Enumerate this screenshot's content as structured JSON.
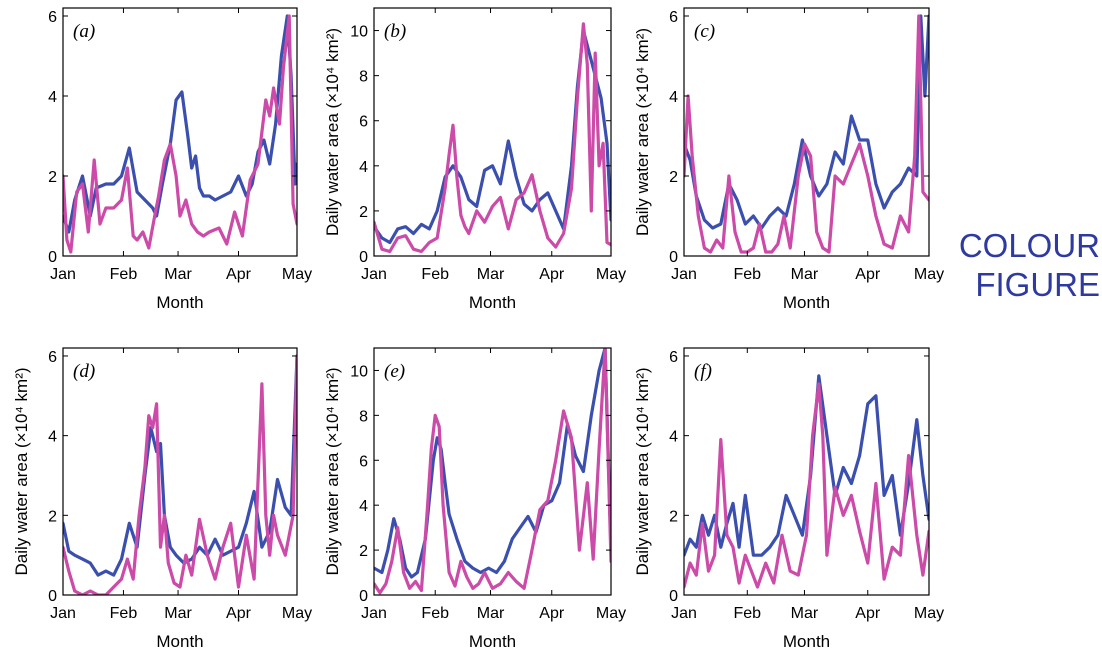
{
  "stamp": {
    "line1": "COLOUR",
    "line2": "FIGURE"
  },
  "colors": {
    "blue": "#3a4fae",
    "magenta": "#cc4aa8"
  },
  "chart_data": [
    {
      "type": "line",
      "panel_label": "(a)",
      "xlabel": "Month",
      "ylabel": "Daily water area (×10⁴ km²)",
      "ylim": [
        0,
        6.2
      ],
      "yticks": [
        0,
        2,
        4,
        6
      ],
      "xlim": [
        0,
        120
      ],
      "xticks": [
        0,
        31,
        59,
        90,
        120
      ],
      "xtick_labels": [
        "Jan",
        "Feb",
        "Mar",
        "Apr",
        "May"
      ],
      "series": [
        {
          "color": "#3a4fae",
          "x": [
            0,
            3,
            6,
            10,
            14,
            17,
            22,
            26,
            30,
            34,
            38,
            42,
            46,
            48,
            51,
            55,
            58,
            61,
            64,
            66,
            68,
            70,
            72,
            75,
            78,
            82,
            86,
            90,
            94,
            97,
            100,
            103,
            106,
            109,
            112,
            115,
            117,
            119,
            120
          ],
          "y": [
            1.0,
            0.6,
            1.4,
            2.0,
            1.0,
            1.7,
            1.8,
            1.8,
            2.0,
            2.7,
            1.6,
            1.4,
            1.2,
            1.0,
            1.8,
            2.8,
            3.9,
            4.1,
            3.0,
            2.2,
            2.5,
            1.7,
            1.5,
            1.5,
            1.4,
            1.5,
            1.6,
            2.0,
            1.5,
            1.8,
            2.6,
            2.9,
            2.3,
            3.3,
            5.0,
            6.0,
            4.5,
            1.8,
            2.3
          ]
        },
        {
          "color": "#cc4aa8",
          "x": [
            0,
            2,
            4,
            7,
            10,
            13,
            16,
            19,
            22,
            26,
            30,
            33,
            36,
            38,
            41,
            44,
            47,
            49,
            52,
            55,
            58,
            60,
            63,
            66,
            69,
            72,
            75,
            80,
            84,
            88,
            92,
            96,
            100,
            104,
            106,
            108,
            111,
            113,
            116,
            118,
            120
          ],
          "y": [
            2.0,
            0.4,
            0.1,
            1.6,
            1.8,
            0.6,
            2.4,
            0.8,
            1.2,
            1.2,
            1.4,
            2.2,
            0.5,
            0.4,
            0.6,
            0.2,
            1.0,
            1.5,
            2.4,
            2.8,
            2.0,
            1.0,
            1.4,
            0.8,
            0.6,
            0.5,
            0.6,
            0.7,
            0.3,
            1.1,
            0.5,
            1.9,
            2.3,
            3.9,
            3.5,
            4.2,
            3.3,
            4.7,
            6.0,
            1.3,
            0.8
          ]
        }
      ]
    },
    {
      "type": "line",
      "panel_label": "(b)",
      "xlabel": "Month",
      "ylabel": "Daily water area (×10⁴ km²)",
      "ylim": [
        0,
        11
      ],
      "yticks": [
        0,
        2,
        4,
        6,
        8,
        10
      ],
      "xlim": [
        0,
        120
      ],
      "xticks": [
        0,
        31,
        59,
        90,
        120
      ],
      "xtick_labels": [
        "Jan",
        "Feb",
        "Mar",
        "Apr",
        "May"
      ],
      "series": [
        {
          "color": "#3a4fae",
          "x": [
            0,
            4,
            8,
            12,
            16,
            20,
            24,
            28,
            32,
            36,
            40,
            44,
            48,
            52,
            56,
            60,
            64,
            68,
            72,
            76,
            80,
            84,
            88,
            92,
            96,
            100,
            103,
            106,
            109,
            112,
            115,
            118,
            120
          ],
          "y": [
            1.3,
            0.8,
            0.6,
            1.2,
            1.3,
            1.0,
            1.4,
            1.2,
            2.0,
            3.5,
            4.0,
            3.5,
            2.5,
            2.2,
            3.8,
            4.0,
            3.2,
            5.1,
            3.5,
            2.3,
            2.0,
            2.5,
            2.8,
            2.0,
            1.2,
            4.0,
            7.5,
            10.0,
            9.0,
            8.0,
            7.0,
            5.0,
            1.6
          ]
        },
        {
          "color": "#cc4aa8",
          "x": [
            0,
            4,
            8,
            12,
            16,
            20,
            24,
            28,
            32,
            36,
            38,
            40,
            42,
            44,
            46,
            48,
            52,
            56,
            60,
            64,
            68,
            72,
            76,
            80,
            84,
            88,
            92,
            96,
            100,
            103,
            106,
            108,
            110,
            112,
            114,
            116,
            118,
            120
          ],
          "y": [
            1.5,
            0.3,
            0.2,
            0.8,
            0.9,
            0.3,
            0.2,
            0.6,
            0.8,
            3.0,
            4.5,
            5.8,
            3.5,
            1.8,
            1.3,
            1.0,
            2.0,
            1.5,
            2.2,
            2.6,
            1.2,
            2.5,
            2.8,
            3.6,
            2.0,
            0.8,
            0.4,
            1.0,
            3.0,
            7.0,
            10.3,
            8.5,
            2.0,
            9.0,
            4.0,
            5.0,
            0.6,
            0.5
          ]
        }
      ]
    },
    {
      "type": "line",
      "panel_label": "(c)",
      "xlabel": "Month",
      "ylabel": "Daily water area (×10⁴ km²)",
      "ylim": [
        0,
        6.2
      ],
      "yticks": [
        0,
        2,
        4,
        6
      ],
      "xlim": [
        0,
        120
      ],
      "xticks": [
        0,
        31,
        59,
        90,
        120
      ],
      "xtick_labels": [
        "Jan",
        "Feb",
        "Mar",
        "Apr",
        "May"
      ],
      "series": [
        {
          "color": "#3a4fae",
          "x": [
            0,
            3,
            6,
            10,
            14,
            18,
            22,
            26,
            30,
            34,
            38,
            42,
            46,
            50,
            54,
            58,
            62,
            66,
            70,
            74,
            78,
            82,
            86,
            90,
            94,
            98,
            102,
            106,
            110,
            114,
            116,
            118,
            120
          ],
          "y": [
            2.8,
            2.4,
            1.5,
            0.9,
            0.7,
            0.8,
            1.8,
            1.4,
            0.8,
            1.0,
            0.7,
            1.0,
            1.2,
            1.0,
            1.8,
            2.9,
            2.0,
            1.5,
            1.8,
            2.6,
            2.3,
            3.5,
            2.9,
            2.9,
            1.8,
            1.2,
            1.6,
            1.8,
            2.2,
            2.0,
            6.0,
            4.0,
            6.0
          ]
        },
        {
          "color": "#cc4aa8",
          "x": [
            0,
            2,
            4,
            7,
            10,
            13,
            16,
            19,
            22,
            25,
            28,
            31,
            34,
            37,
            40,
            43,
            46,
            49,
            52,
            56,
            59,
            62,
            65,
            68,
            71,
            74,
            78,
            82,
            86,
            90,
            94,
            98,
            102,
            106,
            110,
            113,
            115,
            117,
            120
          ],
          "y": [
            2.0,
            4.0,
            2.5,
            1.0,
            0.2,
            0.1,
            0.4,
            0.2,
            2.0,
            0.6,
            0.1,
            0.1,
            0.2,
            0.8,
            0.1,
            0.1,
            0.3,
            1.0,
            0.2,
            2.0,
            2.8,
            2.5,
            0.6,
            0.2,
            0.1,
            2.0,
            1.8,
            2.3,
            2.8,
            2.0,
            1.0,
            0.3,
            0.2,
            1.0,
            0.6,
            2.5,
            6.0,
            1.6,
            1.4
          ]
        }
      ]
    },
    {
      "type": "line",
      "panel_label": "(d)",
      "xlabel": "Month",
      "ylabel": "Daily water area (×10⁴ km²)",
      "ylim": [
        0,
        6.2
      ],
      "yticks": [
        0,
        2,
        4,
        6
      ],
      "xlim": [
        0,
        120
      ],
      "xticks": [
        0,
        31,
        59,
        90,
        120
      ],
      "xtick_labels": [
        "Jan",
        "Feb",
        "Mar",
        "Apr",
        "May"
      ],
      "series": [
        {
          "color": "#3a4fae",
          "x": [
            0,
            3,
            6,
            10,
            14,
            18,
            22,
            26,
            30,
            34,
            38,
            42,
            45,
            48,
            50,
            52,
            55,
            58,
            62,
            66,
            70,
            74,
            78,
            82,
            86,
            90,
            94,
            98,
            102,
            106,
            110,
            114,
            117,
            120
          ],
          "y": [
            1.8,
            1.1,
            1.0,
            0.9,
            0.8,
            0.5,
            0.6,
            0.5,
            0.9,
            1.8,
            1.2,
            3.0,
            4.2,
            3.6,
            3.8,
            2.0,
            1.2,
            1.0,
            0.8,
            0.9,
            1.2,
            1.0,
            1.4,
            1.0,
            1.1,
            1.2,
            1.8,
            2.6,
            1.2,
            1.6,
            2.9,
            2.2,
            2.0,
            6.0
          ]
        },
        {
          "color": "#cc4aa8",
          "x": [
            0,
            3,
            6,
            10,
            14,
            18,
            22,
            26,
            30,
            33,
            36,
            39,
            42,
            44,
            46,
            48,
            50,
            52,
            54,
            57,
            60,
            63,
            66,
            70,
            74,
            78,
            82,
            86,
            90,
            94,
            98,
            102,
            104,
            106,
            108,
            110,
            114,
            118,
            120
          ],
          "y": [
            1.2,
            0.6,
            0.1,
            0.0,
            0.1,
            0.0,
            0.0,
            0.2,
            0.4,
            0.9,
            0.4,
            2.0,
            3.2,
            4.5,
            4.2,
            4.8,
            1.2,
            2.0,
            0.8,
            0.3,
            0.2,
            1.0,
            0.5,
            1.9,
            1.0,
            0.4,
            1.2,
            1.8,
            0.2,
            1.5,
            0.4,
            5.3,
            2.0,
            1.0,
            2.0,
            1.5,
            1.0,
            2.0,
            6.0
          ]
        }
      ]
    },
    {
      "type": "line",
      "panel_label": "(e)",
      "xlabel": "Month",
      "ylabel": "Daily water area (×10⁴ km²)",
      "ylim": [
        0,
        11
      ],
      "yticks": [
        0,
        2,
        4,
        6,
        8,
        10
      ],
      "xlim": [
        0,
        120
      ],
      "xticks": [
        0,
        31,
        59,
        90,
        120
      ],
      "xtick_labels": [
        "Jan",
        "Feb",
        "Mar",
        "Apr",
        "May"
      ],
      "series": [
        {
          "color": "#3a4fae",
          "x": [
            0,
            4,
            7,
            10,
            13,
            16,
            19,
            22,
            26,
            30,
            32,
            34,
            36,
            38,
            42,
            46,
            50,
            54,
            58,
            62,
            66,
            70,
            74,
            78,
            82,
            86,
            90,
            94,
            98,
            102,
            106,
            110,
            114,
            117,
            120
          ],
          "y": [
            1.2,
            1.0,
            2.0,
            3.4,
            2.5,
            1.2,
            0.8,
            1.0,
            2.5,
            6.0,
            7.0,
            6.5,
            5.0,
            3.6,
            2.5,
            1.5,
            1.2,
            1.0,
            1.2,
            1.0,
            1.5,
            2.5,
            3.0,
            3.5,
            2.8,
            4.0,
            4.2,
            5.0,
            7.6,
            6.2,
            5.5,
            8.0,
            10.0,
            11.0,
            2.0
          ]
        },
        {
          "color": "#cc4aa8",
          "x": [
            0,
            3,
            6,
            9,
            12,
            15,
            18,
            21,
            24,
            27,
            29,
            31,
            33,
            35,
            38,
            41,
            44,
            47,
            50,
            53,
            56,
            60,
            64,
            68,
            72,
            76,
            80,
            84,
            88,
            92,
            96,
            100,
            104,
            108,
            111,
            114,
            117,
            120
          ],
          "y": [
            0.5,
            0.1,
            0.5,
            1.5,
            3.0,
            1.0,
            0.3,
            0.6,
            0.2,
            3.8,
            6.5,
            8.0,
            7.5,
            4.0,
            1.0,
            0.4,
            1.5,
            0.8,
            0.3,
            0.5,
            1.0,
            0.3,
            0.5,
            1.0,
            0.6,
            0.3,
            2.0,
            3.8,
            4.2,
            6.0,
            8.2,
            7.0,
            2.0,
            5.0,
            1.6,
            6.5,
            11.0,
            1.5
          ]
        }
      ]
    },
    {
      "type": "line",
      "panel_label": "(f)",
      "xlabel": "Month",
      "ylabel": "Daily water area (×10⁴ km²)",
      "ylim": [
        0,
        6.2
      ],
      "yticks": [
        0,
        2,
        4,
        6
      ],
      "xlim": [
        0,
        120
      ],
      "xticks": [
        0,
        31,
        59,
        90,
        120
      ],
      "xtick_labels": [
        "Jan",
        "Feb",
        "Mar",
        "Apr",
        "May"
      ],
      "series": [
        {
          "color": "#3a4fae",
          "x": [
            0,
            3,
            6,
            9,
            12,
            15,
            18,
            21,
            24,
            27,
            30,
            34,
            38,
            42,
            46,
            50,
            54,
            58,
            62,
            66,
            70,
            74,
            78,
            82,
            86,
            90,
            94,
            98,
            102,
            106,
            110,
            114,
            117,
            120
          ],
          "y": [
            1.0,
            1.4,
            1.2,
            2.0,
            1.5,
            2.0,
            1.2,
            1.8,
            2.3,
            1.2,
            2.5,
            1.0,
            1.0,
            1.2,
            1.5,
            2.5,
            2.0,
            1.5,
            3.0,
            5.5,
            4.0,
            2.5,
            3.2,
            2.8,
            3.5,
            4.8,
            5.0,
            2.5,
            3.0,
            1.5,
            2.8,
            4.4,
            3.0,
            1.9
          ]
        },
        {
          "color": "#cc4aa8",
          "x": [
            0,
            3,
            6,
            9,
            12,
            15,
            18,
            21,
            24,
            27,
            30,
            33,
            36,
            40,
            44,
            48,
            52,
            56,
            60,
            63,
            66,
            68,
            70,
            74,
            78,
            82,
            86,
            90,
            94,
            98,
            102,
            106,
            110,
            114,
            117,
            120
          ],
          "y": [
            0.2,
            0.8,
            0.5,
            1.8,
            0.6,
            1.0,
            3.9,
            1.5,
            1.2,
            0.3,
            1.0,
            0.6,
            0.2,
            0.8,
            0.3,
            1.5,
            0.6,
            0.5,
            1.5,
            4.0,
            5.3,
            4.0,
            1.0,
            2.7,
            2.0,
            2.5,
            1.6,
            0.8,
            2.8,
            0.4,
            1.2,
            1.0,
            3.5,
            1.5,
            0.5,
            1.6
          ]
        }
      ]
    }
  ]
}
